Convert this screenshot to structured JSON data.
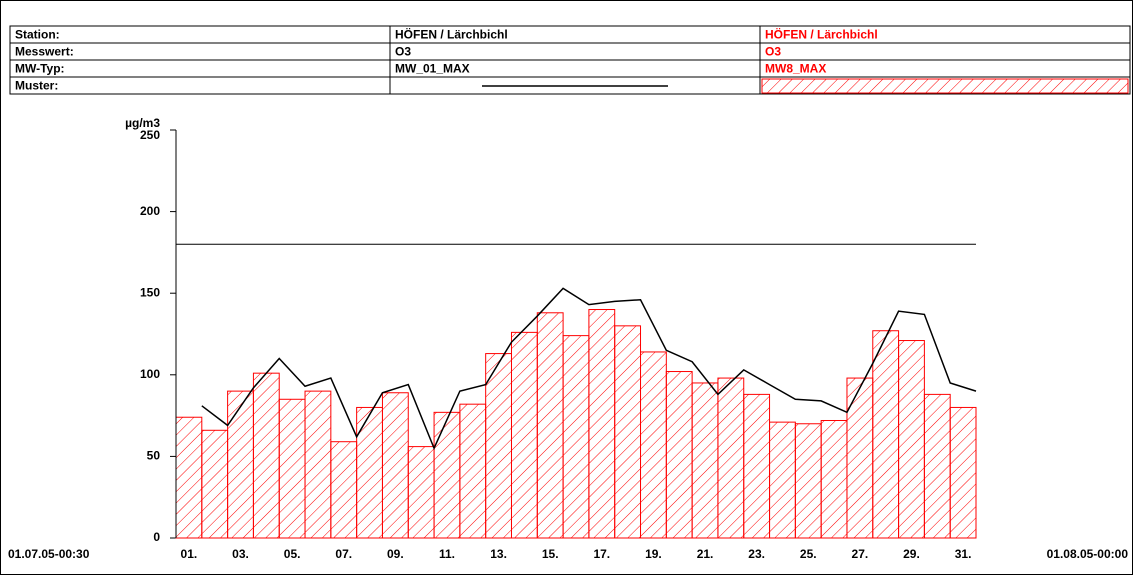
{
  "table": {
    "rows": [
      [
        "Station:",
        "HÖFEN / Lärchbichl",
        "HÖFEN / Lärchbichl"
      ],
      [
        "Messwert:",
        "O3",
        "O3"
      ],
      [
        "MW-Typ:",
        "MW_01_MAX",
        "MW8_MAX"
      ],
      [
        "Muster:"
      ]
    ]
  },
  "chart_data": {
    "type": "bar",
    "y_label": "µg/m3",
    "x_start": "01.07.05-00:30",
    "x_end": "01.08.05-00:00",
    "categories": [
      "01.",
      null,
      "03.",
      null,
      "05.",
      null,
      "07.",
      null,
      "09.",
      null,
      "11.",
      null,
      "13.",
      null,
      "15.",
      null,
      "17.",
      null,
      "19.",
      null,
      "21.",
      null,
      "23.",
      null,
      "25.",
      null,
      "27.",
      null,
      "29.",
      null,
      "31."
    ],
    "series": [
      {
        "type": "line",
        "color": "#000000",
        "values": [
          81,
          69,
          92,
          110,
          93,
          98,
          62,
          89,
          94,
          55,
          90,
          94,
          120,
          136,
          153,
          143,
          145,
          146,
          115,
          108,
          88,
          103,
          94,
          85,
          84,
          77,
          107,
          139,
          137,
          95,
          90
        ]
      },
      {
        "type": "bar",
        "color": "#ff0000",
        "values": [
          74,
          66,
          90,
          101,
          85,
          90,
          59,
          80,
          89,
          56,
          77,
          82,
          113,
          126,
          138,
          124,
          140,
          130,
          114,
          102,
          95,
          98,
          88,
          71,
          70,
          72,
          98,
          127,
          121,
          88,
          80
        ]
      }
    ],
    "threshold": 180,
    "ylim": [
      0,
      250
    ],
    "yticks": [
      0,
      50,
      100,
      150,
      200,
      250
    ]
  }
}
